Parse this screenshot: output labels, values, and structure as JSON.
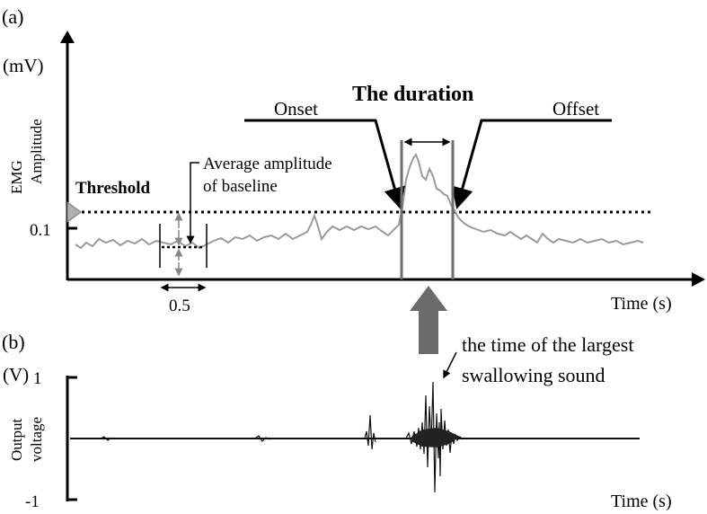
{
  "panel_a": {
    "label": "(a)",
    "y_unit": "(mV)",
    "y_label_line1": "EMG",
    "y_label_line2": "Amplitude",
    "y_tick": "0.1",
    "x_label": "Time  (s)",
    "threshold_label": "Threshold",
    "baseline_label_line1": "Average  amplitude",
    "baseline_label_line2": "of baseline",
    "window_label": "0.5",
    "onset_label": "Onset",
    "offset_label": "Offset",
    "duration_label": "The duration"
  },
  "panel_b": {
    "label": "(b)",
    "y_unit": "(V)",
    "y_label_line1": "Output",
    "y_label_line2": "voltage",
    "y_tick_top": "1",
    "y_tick_bottom": "-1",
    "x_label": "Time  (s)",
    "annotation_line1": "the time of the largest",
    "annotation_line2": "swallowing  sound"
  },
  "colors": {
    "axis": "#000000",
    "signal_emg": "#9a9a9a",
    "signal_sound": "#111111",
    "marker": "#6e6e6e",
    "arrow": "#6b6b6b"
  }
}
